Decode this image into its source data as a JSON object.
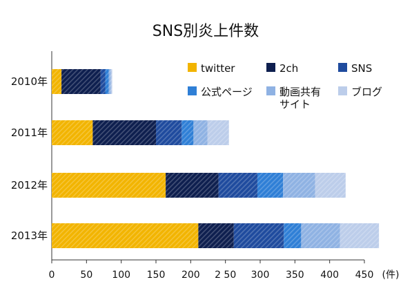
{
  "chart_data": {
    "type": "bar",
    "orientation": "horizontal",
    "stacked": true,
    "title": "SNS別炎上件数",
    "categories": [
      "2010年",
      "2011年",
      "2012年",
      "2013年"
    ],
    "series": [
      {
        "name": "twitter",
        "color": "#F2B400",
        "values": [
          14,
          59,
          164,
          211
        ]
      },
      {
        "name": "2ch",
        "color": "#0E1F4F",
        "values": [
          56,
          91,
          76,
          51
        ]
      },
      {
        "name": "SNS",
        "color": "#1F4B9E",
        "values": [
          7,
          37,
          56,
          72
        ]
      },
      {
        "name": "公式ページ",
        "color": "#2F7FD6",
        "values": [
          5,
          17,
          37,
          25
        ]
      },
      {
        "name": "動画共有サイト",
        "color": "#8FB2E3",
        "values": [
          3,
          20,
          46,
          56
        ]
      },
      {
        "name": "ブログ",
        "color": "#BCCDEA",
        "values": [
          2,
          31,
          44,
          56
        ]
      }
    ],
    "legend_labels": [
      [
        "twitter"
      ],
      [
        "2ch"
      ],
      [
        "SNS"
      ],
      [
        "公式ページ"
      ],
      [
        "動画共有",
        "サイト"
      ],
      [
        "ブログ"
      ]
    ],
    "xticks": [
      "0",
      "50",
      "100",
      "150",
      "200",
      "2 50",
      "300",
      "350",
      "400",
      "450"
    ],
    "unit_label": "(件)",
    "xlim": [
      0,
      450
    ],
    "legend_position": "top-right",
    "grid": false
  }
}
